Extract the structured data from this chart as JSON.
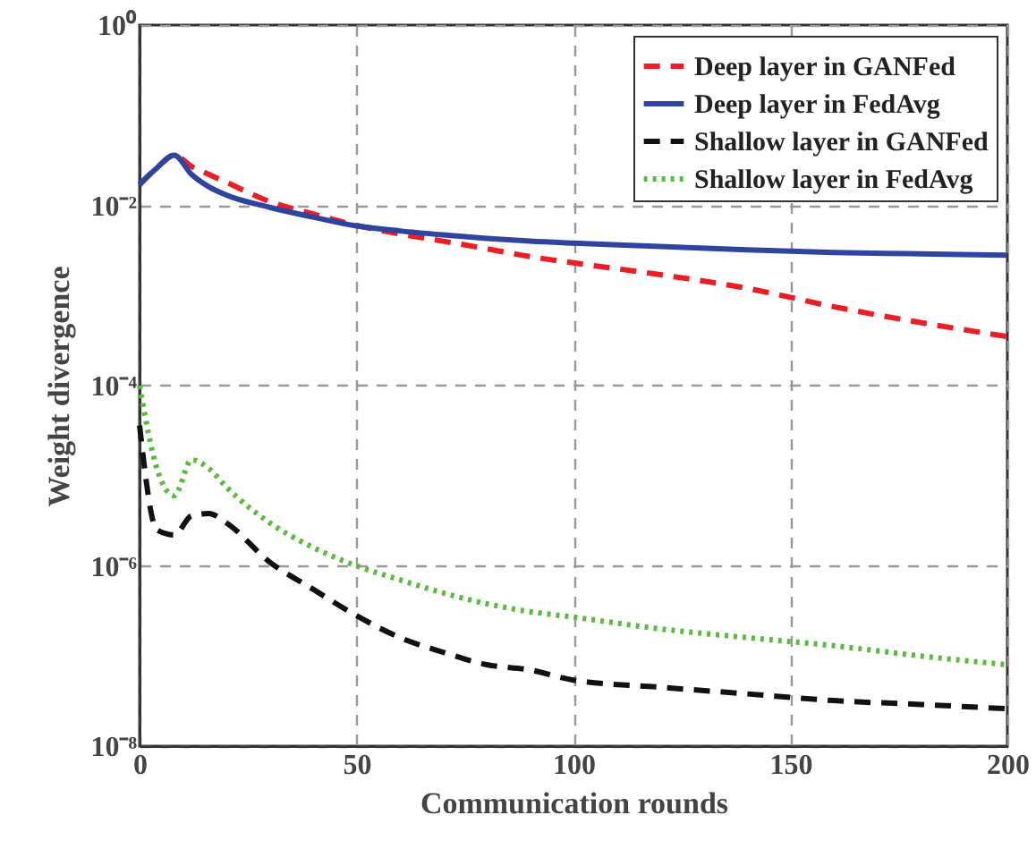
{
  "chart_data": {
    "type": "line",
    "xlabel": "Communication rounds",
    "ylabel": "Weight divergence",
    "xlim": [
      0,
      200
    ],
    "xticks": [
      0,
      50,
      100,
      150,
      200
    ],
    "ylim": [
      1e-08,
      1
    ],
    "yticks": [
      {
        "value": 1e-08,
        "label": "10⁻⁸"
      },
      {
        "value": 1e-06,
        "label": "10⁻⁶"
      },
      {
        "value": 0.0001,
        "label": "10⁻⁴"
      },
      {
        "value": 0.01,
        "label": "10⁻²"
      },
      {
        "value": 1,
        "label": "10⁰"
      }
    ],
    "log": "y",
    "grid": true,
    "legend": "top right",
    "marker": "none",
    "x": [
      0,
      4,
      8,
      12,
      16,
      20,
      30,
      40,
      50,
      60,
      70,
      80,
      90,
      100,
      120,
      140,
      160,
      180,
      200
    ],
    "series": [
      {
        "name": "Deep layer in GANFed",
        "color": "#ee1c25",
        "line_style": "dashed",
        "values": [
          0.017,
          0.026,
          0.036,
          0.027,
          0.022,
          0.018,
          0.011,
          0.008,
          0.006,
          0.0048,
          0.004,
          0.0033,
          0.0027,
          0.0023,
          0.0017,
          0.0012,
          0.00075,
          0.0005,
          0.00035
        ]
      },
      {
        "name": "Deep layer in FedAvg",
        "color": "#2e45a0",
        "line_style": "solid",
        "values": [
          0.017,
          0.026,
          0.036,
          0.022,
          0.016,
          0.013,
          0.0095,
          0.0074,
          0.0059,
          0.0052,
          0.0047,
          0.0043,
          0.004,
          0.0038,
          0.0035,
          0.0032,
          0.003,
          0.0029,
          0.0028
        ]
      },
      {
        "name": "Shallow layer in GANFed",
        "color": "#111111",
        "line_style": "dashed",
        "values": [
          3.6e-05,
          2.5e-06,
          2.2e-06,
          3.6e-06,
          3.8e-06,
          3e-06,
          1.1e-06,
          5.5e-07,
          2.8e-07,
          1.6e-07,
          1.1e-07,
          8e-08,
          7e-08,
          5.4e-08,
          4.5e-08,
          3.8e-08,
          3.2e-08,
          2.9e-08,
          2.6e-08
        ]
      },
      {
        "name": "Shallow layer in FedAvg",
        "color": "#5bbb3e",
        "line_style": "dotted",
        "values": [
          0.0001,
          1.2e-05,
          6e-06,
          1.5e-05,
          1.2e-05,
          7.5e-06,
          3e-06,
          1.6e-06,
          1e-06,
          7e-07,
          5e-07,
          3.8e-07,
          3.1e-07,
          2.7e-07,
          2e-07,
          1.6e-07,
          1.3e-07,
          1e-07,
          8e-08
        ]
      }
    ]
  }
}
